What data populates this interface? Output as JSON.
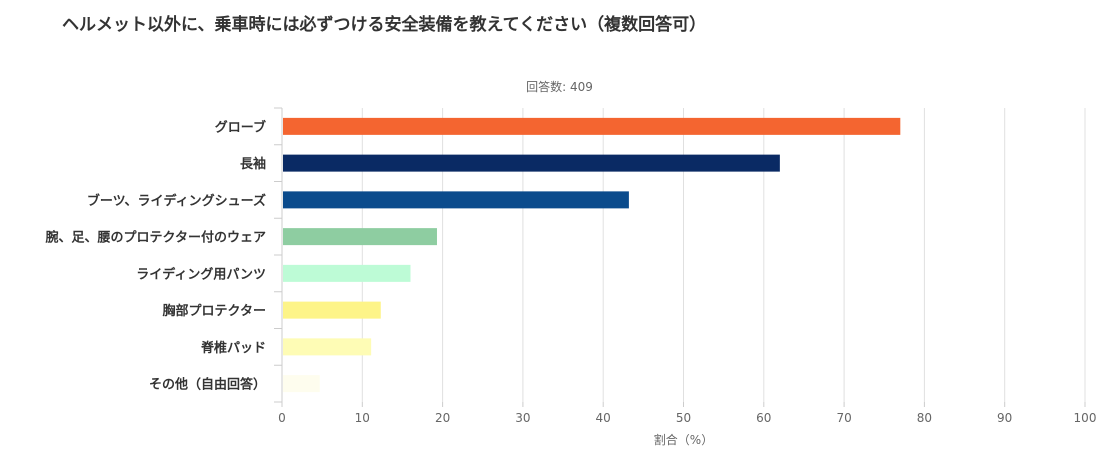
{
  "header": {
    "title": "ヘルメット以外に、乗車時には必ずつける安全装備を教えてください（複数回答可）",
    "subtitle": "回答数: 409"
  },
  "chart_data": {
    "type": "bar",
    "orientation": "horizontal",
    "title": "ヘルメット以外に、乗車時には必ずつける安全装備を教えてください（複数回答可）",
    "subtitle": "回答数: 409",
    "xlabel": "割合（%）",
    "xlim": [
      0,
      100
    ],
    "xticks": [
      0,
      10,
      20,
      30,
      40,
      50,
      60,
      70,
      80,
      90,
      100
    ],
    "grid": true,
    "categories": [
      "グローブ",
      "長袖",
      "ブーツ、ライディングシューズ",
      "腕、足、腰のプロテクター付のウェア",
      "ライディング用パンツ",
      "胸部プロテクター",
      "脊椎パッド",
      "その他（自由回答）"
    ],
    "values": [
      77,
      62,
      43.2,
      19.3,
      16,
      12.3,
      11.1,
      4.7
    ],
    "colors": [
      "#f46530",
      "#0a2a64",
      "#0b4b8c",
      "#8ecda1",
      "#bdfbd6",
      "#fdf488",
      "#fefcb5",
      "#fefdee"
    ]
  }
}
